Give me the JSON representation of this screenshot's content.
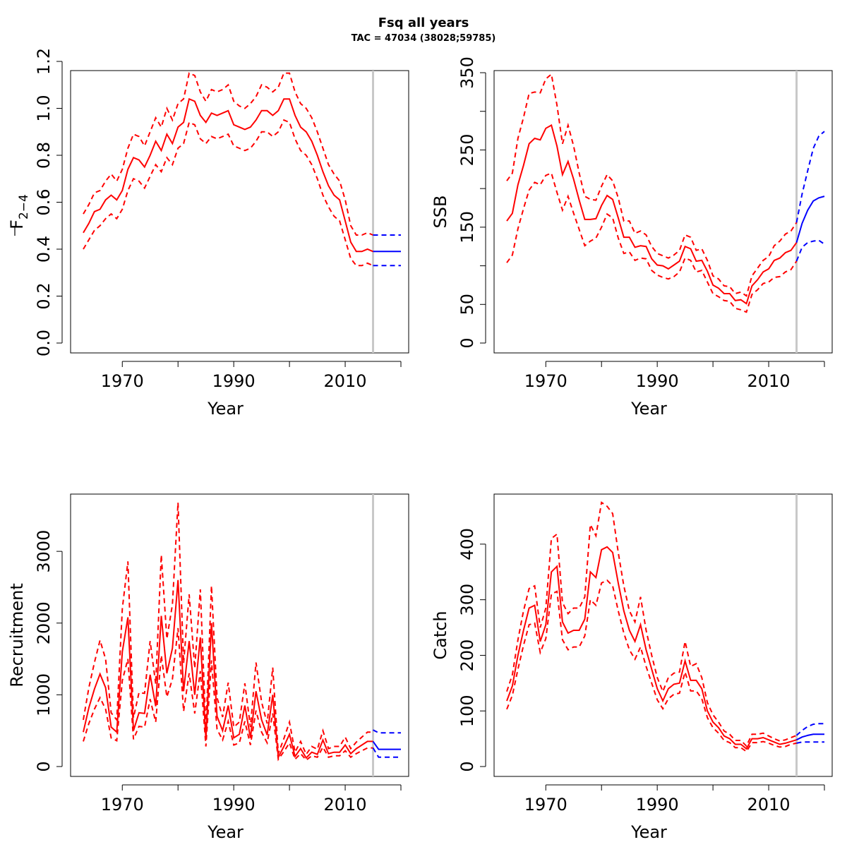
{
  "title": "Fsq all years",
  "subtitle": "TAC = 47034 (38028;59785)",
  "colors": {
    "assessment": "#ff0000",
    "forecast": "#0000ff",
    "divider": "#c8c8c8"
  },
  "chart_data": [
    {
      "type": "line",
      "name": "fbar",
      "title": "",
      "xlabel": "Year",
      "ylabel": "F",
      "ylabel_sub": "2−4",
      "xlim": [
        1963,
        2020
      ],
      "ylim": [
        0,
        1.2
      ],
      "xticks": [
        1970,
        1990,
        2010
      ],
      "xtick_marks": [
        1970,
        1980,
        1990,
        2000,
        2010,
        2020
      ],
      "yticks": [
        "0.0",
        "0.2",
        "0.4",
        "0.6",
        "0.8",
        "1.0",
        "1.2"
      ],
      "divider_x": 2015,
      "assessment": {
        "x": [
          1963,
          1964,
          1965,
          1966,
          1967,
          1968,
          1969,
          1970,
          1971,
          1972,
          1973,
          1974,
          1975,
          1976,
          1977,
          1978,
          1979,
          1980,
          1981,
          1982,
          1983,
          1984,
          1985,
          1986,
          1987,
          1988,
          1989,
          1990,
          1991,
          1992,
          1993,
          1994,
          1995,
          1996,
          1997,
          1998,
          1999,
          2000,
          2001,
          2002,
          2003,
          2004,
          2005,
          2006,
          2007,
          2008,
          2009,
          2010,
          2011,
          2012,
          2013,
          2014,
          2015
        ],
        "est": [
          0.47,
          0.51,
          0.56,
          0.57,
          0.61,
          0.63,
          0.61,
          0.65,
          0.74,
          0.79,
          0.78,
          0.75,
          0.8,
          0.86,
          0.82,
          0.89,
          0.85,
          0.92,
          0.94,
          1.04,
          1.03,
          0.97,
          0.94,
          0.98,
          0.97,
          0.98,
          0.99,
          0.93,
          0.92,
          0.91,
          0.92,
          0.95,
          0.99,
          0.99,
          0.97,
          0.99,
          1.04,
          1.04,
          0.97,
          0.92,
          0.9,
          0.86,
          0.8,
          0.73,
          0.67,
          0.63,
          0.61,
          0.52,
          0.43,
          0.39,
          0.39,
          0.4,
          0.39
        ],
        "lo": [
          0.4,
          0.44,
          0.48,
          0.5,
          0.53,
          0.55,
          0.53,
          0.57,
          0.65,
          0.7,
          0.69,
          0.66,
          0.71,
          0.76,
          0.73,
          0.79,
          0.76,
          0.83,
          0.85,
          0.94,
          0.93,
          0.87,
          0.85,
          0.88,
          0.87,
          0.88,
          0.89,
          0.84,
          0.83,
          0.82,
          0.83,
          0.86,
          0.9,
          0.9,
          0.88,
          0.9,
          0.95,
          0.94,
          0.87,
          0.82,
          0.8,
          0.76,
          0.7,
          0.63,
          0.58,
          0.54,
          0.52,
          0.44,
          0.36,
          0.33,
          0.33,
          0.34,
          0.33
        ],
        "hi": [
          0.55,
          0.59,
          0.64,
          0.65,
          0.69,
          0.72,
          0.69,
          0.74,
          0.83,
          0.89,
          0.88,
          0.84,
          0.9,
          0.96,
          0.92,
          1.0,
          0.95,
          1.02,
          1.04,
          1.15,
          1.14,
          1.07,
          1.03,
          1.08,
          1.07,
          1.08,
          1.1,
          1.03,
          1.01,
          1.0,
          1.02,
          1.05,
          1.1,
          1.09,
          1.07,
          1.09,
          1.15,
          1.15,
          1.07,
          1.02,
          1.0,
          0.96,
          0.9,
          0.83,
          0.76,
          0.72,
          0.69,
          0.61,
          0.5,
          0.46,
          0.46,
          0.47,
          0.46
        ]
      },
      "forecast": {
        "x": [
          2015,
          2016,
          2017,
          2018,
          2019,
          2020
        ],
        "est": [
          0.39,
          0.39,
          0.39,
          0.39,
          0.39,
          0.39
        ],
        "lo": [
          0.33,
          0.33,
          0.33,
          0.33,
          0.33,
          0.33
        ],
        "hi": [
          0.46,
          0.46,
          0.46,
          0.46,
          0.46,
          0.46
        ]
      }
    },
    {
      "type": "line",
      "name": "ssb",
      "title": "",
      "xlabel": "Year",
      "ylabel": "SSB",
      "xlim": [
        1963,
        2020
      ],
      "ylim": [
        0,
        350
      ],
      "xticks": [
        1970,
        1990,
        2010
      ],
      "xtick_marks": [
        1970,
        1980,
        1990,
        2000,
        2010,
        2020
      ],
      "yticks": [
        "0",
        "50",
        "150",
        "250",
        "350"
      ],
      "ytick_marks": [
        0,
        50,
        100,
        150,
        200,
        250,
        300,
        350
      ],
      "divider_x": 2015,
      "assessment": {
        "x": [
          1963,
          1964,
          1965,
          1966,
          1967,
          1968,
          1969,
          1970,
          1971,
          1972,
          1973,
          1974,
          1975,
          1976,
          1977,
          1978,
          1979,
          1980,
          1981,
          1982,
          1983,
          1984,
          1985,
          1986,
          1987,
          1988,
          1989,
          1990,
          1991,
          1992,
          1993,
          1994,
          1995,
          1996,
          1997,
          1998,
          1999,
          2000,
          2001,
          2002,
          2003,
          2004,
          2005,
          2006,
          2007,
          2008,
          2009,
          2010,
          2011,
          2012,
          2013,
          2014,
          2015
        ],
        "est": [
          158,
          168,
          205,
          230,
          258,
          265,
          263,
          278,
          282,
          255,
          218,
          235,
          212,
          185,
          160,
          160,
          161,
          178,
          191,
          186,
          162,
          137,
          137,
          124,
          126,
          125,
          109,
          101,
          100,
          96,
          101,
          106,
          125,
          122,
          106,
          107,
          93,
          75,
          71,
          64,
          64,
          55,
          56,
          51,
          74,
          82,
          92,
          96,
          107,
          110,
          117,
          120,
          130
        ],
        "lo": [
          104,
          114,
          148,
          174,
          198,
          208,
          205,
          217,
          220,
          195,
          172,
          190,
          168,
          147,
          126,
          132,
          136,
          150,
          167,
          162,
          136,
          116,
          118,
          107,
          110,
          109,
          94,
          88,
          85,
          83,
          86,
          92,
          110,
          107,
          92,
          94,
          79,
          64,
          60,
          55,
          54,
          45,
          43,
          40,
          63,
          69,
          77,
          79,
          85,
          86,
          92,
          95,
          106
        ],
        "hi": [
          210,
          220,
          265,
          292,
          323,
          325,
          324,
          342,
          348,
          308,
          258,
          282,
          255,
          220,
          190,
          186,
          185,
          203,
          218,
          210,
          188,
          158,
          158,
          142,
          145,
          140,
          125,
          116,
          113,
          110,
          114,
          120,
          140,
          137,
          120,
          122,
          107,
          87,
          83,
          74,
          73,
          64,
          66,
          61,
          87,
          97,
          107,
          112,
          126,
          132,
          141,
          145,
          156
        ]
      },
      "forecast": {
        "x": [
          2015,
          2016,
          2017,
          2018,
          2019,
          2020
        ],
        "est": [
          130,
          155,
          172,
          184,
          188,
          190
        ],
        "lo": [
          106,
          124,
          130,
          132,
          133,
          128
        ],
        "hi": [
          156,
          193,
          223,
          252,
          268,
          274
        ]
      }
    },
    {
      "type": "line",
      "name": "recruitment",
      "title": "",
      "xlabel": "",
      "ylabel": "Recruitment",
      "xlim": [
        1963,
        2020
      ],
      "ylim": [
        0,
        3700
      ],
      "xticks": [
        1970,
        1990,
        2010
      ],
      "xtick_marks": [
        1970,
        1980,
        1990,
        2000,
        2010,
        2020
      ],
      "yticks": [
        "0",
        "1000",
        "2000",
        "3000"
      ],
      "ytick_marks": [
        0,
        1000,
        2000,
        3000
      ],
      "divider_x": 2015,
      "assessment": {
        "x": [
          1963,
          1964,
          1965,
          1966,
          1967,
          1968,
          1969,
          1970,
          1971,
          1972,
          1973,
          1974,
          1975,
          1976,
          1977,
          1978,
          1979,
          1980,
          1981,
          1982,
          1983,
          1984,
          1985,
          1986,
          1987,
          1988,
          1989,
          1990,
          1991,
          1992,
          1993,
          1994,
          1995,
          1996,
          1997,
          1998,
          1999,
          2000,
          2001,
          2002,
          2003,
          2004,
          2005,
          2006,
          2007,
          2008,
          2009,
          2010,
          2011,
          2012,
          2013,
          2014,
          2015
        ],
        "est": [
          480,
          820,
          1080,
          1290,
          1100,
          550,
          480,
          1600,
          2080,
          500,
          750,
          740,
          1280,
          840,
          2100,
          1300,
          1650,
          2600,
          1050,
          1750,
          1000,
          1800,
          380,
          2000,
          700,
          500,
          850,
          400,
          450,
          850,
          400,
          1050,
          650,
          440,
          1000,
          130,
          280,
          450,
          140,
          250,
          120,
          200,
          170,
          370,
          180,
          200,
          200,
          300,
          180,
          250,
          300,
          350,
          350
        ],
        "lo": [
          350,
          600,
          800,
          960,
          800,
          400,
          360,
          1200,
          1500,
          380,
          560,
          550,
          940,
          620,
          1550,
          970,
          1220,
          1930,
          770,
          1300,
          740,
          1330,
          280,
          1480,
          520,
          370,
          630,
          300,
          330,
          630,
          300,
          780,
          480,
          330,
          740,
          100,
          210,
          330,
          100,
          180,
          90,
          150,
          130,
          270,
          130,
          150,
          150,
          220,
          130,
          180,
          220,
          260,
          260
        ],
        "hi": [
          650,
          1100,
          1450,
          1760,
          1500,
          750,
          650,
          2200,
          2860,
          680,
          1030,
          1020,
          1750,
          1150,
          2950,
          1780,
          2260,
          3680,
          1440,
          2400,
          1370,
          2470,
          520,
          2520,
          960,
          690,
          1170,
          550,
          620,
          1160,
          550,
          1450,
          900,
          600,
          1380,
          180,
          390,
          620,
          200,
          350,
          170,
          280,
          240,
          500,
          250,
          280,
          280,
          410,
          250,
          340,
          410,
          480,
          480
        ]
      },
      "forecast": {
        "x": [
          2015,
          2016,
          2017,
          2018,
          2019,
          2020
        ],
        "est": [
          350,
          240,
          240,
          240,
          240,
          240
        ],
        "lo": [
          260,
          130,
          130,
          130,
          130,
          130
        ],
        "hi": [
          510,
          470,
          470,
          470,
          470,
          470
        ]
      }
    },
    {
      "type": "line",
      "name": "catch",
      "title": "",
      "xlabel": "Year",
      "ylabel": "Catch",
      "xlim": [
        1963,
        2020
      ],
      "ylim": [
        0,
        490
      ],
      "xticks": [
        1970,
        1990,
        2010
      ],
      "xtick_marks": [
        1970,
        1980,
        1990,
        2000,
        2010,
        2020
      ],
      "yticks": [
        "0",
        "100",
        "200",
        "300",
        "400"
      ],
      "ytick_marks": [
        0,
        100,
        200,
        300,
        400
      ],
      "divider_x": 2015,
      "assessment": {
        "x": [
          1963,
          1964,
          1965,
          1966,
          1967,
          1968,
          1969,
          1970,
          1971,
          1972,
          1973,
          1974,
          1975,
          1976,
          1977,
          1978,
          1979,
          1980,
          1981,
          1982,
          1983,
          1984,
          1985,
          1986,
          1987,
          1988,
          1989,
          1990,
          1991,
          1992,
          1993,
          1994,
          1995,
          1996,
          1997,
          1998,
          1999,
          2000,
          2001,
          2002,
          2003,
          2004,
          2005,
          2006,
          2007,
          2008,
          2009,
          2010,
          2011,
          2012,
          2013,
          2014,
          2015
        ],
        "est": [
          118,
          145,
          200,
          245,
          285,
          290,
          225,
          255,
          350,
          360,
          260,
          240,
          245,
          245,
          265,
          350,
          340,
          390,
          395,
          385,
          330,
          280,
          245,
          225,
          255,
          210,
          175,
          140,
          118,
          140,
          148,
          150,
          190,
          155,
          155,
          140,
          100,
          80,
          70,
          55,
          50,
          40,
          40,
          32,
          50,
          50,
          52,
          48,
          44,
          40,
          42,
          45,
          48
        ],
        "lo": [
          103,
          128,
          175,
          218,
          255,
          258,
          205,
          230,
          310,
          315,
          228,
          210,
          215,
          215,
          235,
          300,
          290,
          330,
          335,
          325,
          280,
          240,
          210,
          193,
          215,
          180,
          150,
          120,
          104,
          122,
          130,
          132,
          170,
          136,
          136,
          122,
          88,
          70,
          60,
          47,
          43,
          34,
          34,
          27,
          43,
          43,
          45,
          42,
          38,
          35,
          36,
          40,
          42
        ],
        "hi": [
          135,
          165,
          228,
          280,
          320,
          325,
          250,
          285,
          410,
          418,
          295,
          275,
          285,
          285,
          305,
          435,
          415,
          475,
          468,
          455,
          385,
          325,
          280,
          260,
          305,
          245,
          200,
          160,
          135,
          160,
          168,
          170,
          225,
          180,
          185,
          160,
          115,
          93,
          80,
          64,
          58,
          47,
          47,
          37,
          58,
          58,
          60,
          55,
          50,
          46,
          48,
          52,
          56
        ]
      },
      "forecast": {
        "x": [
          2015,
          2016,
          2017,
          2018,
          2019,
          2020
        ],
        "est": [
          48,
          53,
          56,
          58,
          58,
          58
        ],
        "lo": [
          42,
          44,
          44,
          44,
          44,
          44
        ],
        "hi": [
          56,
          65,
          72,
          76,
          77,
          77
        ]
      }
    }
  ]
}
